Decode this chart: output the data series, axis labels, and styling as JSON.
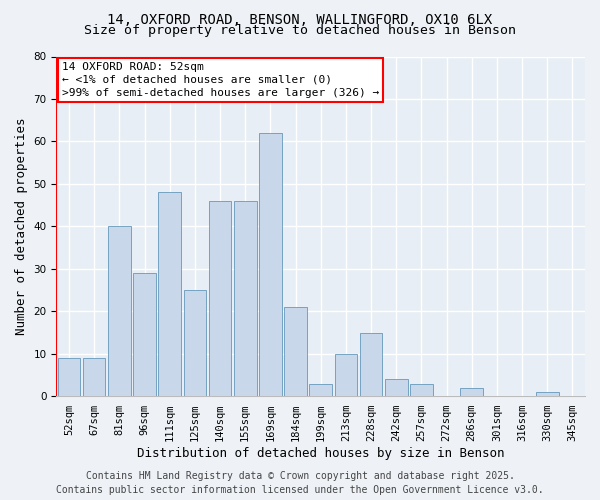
{
  "title_line1": "14, OXFORD ROAD, BENSON, WALLINGFORD, OX10 6LX",
  "title_line2": "Size of property relative to detached houses in Benson",
  "xlabel": "Distribution of detached houses by size in Benson",
  "ylabel": "Number of detached properties",
  "bar_color": "#c8d8ea",
  "bar_edge_color": "#6699bb",
  "categories": [
    "52sqm",
    "67sqm",
    "81sqm",
    "96sqm",
    "111sqm",
    "125sqm",
    "140sqm",
    "155sqm",
    "169sqm",
    "184sqm",
    "199sqm",
    "213sqm",
    "228sqm",
    "242sqm",
    "257sqm",
    "272sqm",
    "286sqm",
    "301sqm",
    "316sqm",
    "330sqm",
    "345sqm"
  ],
  "values": [
    9,
    9,
    40,
    29,
    48,
    25,
    46,
    46,
    62,
    21,
    3,
    10,
    15,
    4,
    3,
    0,
    2,
    0,
    0,
    1,
    0
  ],
  "ylim": [
    0,
    80
  ],
  "yticks": [
    0,
    10,
    20,
    30,
    40,
    50,
    60,
    70,
    80
  ],
  "annotation_text": "14 OXFORD ROAD: 52sqm\n← <1% of detached houses are smaller (0)\n>99% of semi-detached houses are larger (326) →",
  "footer_text": "Contains HM Land Registry data © Crown copyright and database right 2025.\nContains public sector information licensed under the Open Government Licence v3.0.",
  "background_color": "#eef2f7",
  "plot_bg_color": "#e8eef5",
  "grid_color": "#ffffff",
  "title_fontsize": 10,
  "subtitle_fontsize": 9.5,
  "axis_label_fontsize": 9,
  "tick_fontsize": 7.5,
  "annotation_fontsize": 8,
  "footer_fontsize": 7
}
